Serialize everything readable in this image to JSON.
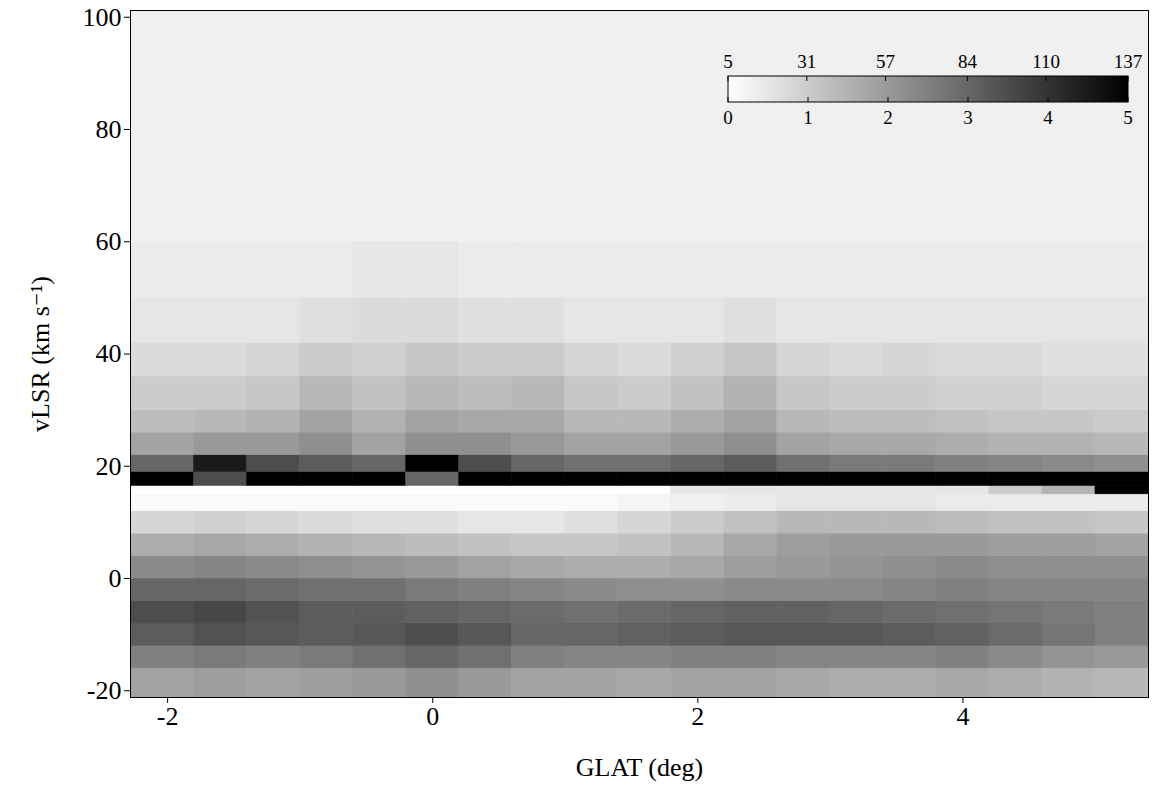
{
  "chart_data": {
    "type": "heatmap",
    "x_label": "GLAT (deg)",
    "y_label": "vLSR (km s⁻¹)",
    "xlim": [
      -2.28,
      5.4
    ],
    "ylim": [
      -21.2,
      101.2
    ],
    "xticks": [
      -2,
      0,
      2,
      4
    ],
    "yticks": [
      -20,
      0,
      20,
      40,
      60,
      80,
      100
    ],
    "x_edges": [
      -2.28,
      -1.8,
      -1.4,
      -1.0,
      -0.6,
      -0.2,
      0.2,
      0.6,
      1.0,
      1.4,
      1.8,
      2.2,
      2.6,
      3.0,
      3.4,
      3.8,
      4.2,
      4.6,
      5.0,
      5.4
    ],
    "y_edges": [
      -21.2,
      -16,
      -12,
      -8,
      -4,
      0,
      4,
      8,
      12,
      15,
      16.5,
      19,
      22,
      26,
      30,
      36,
      42,
      50,
      60,
      80,
      101.2
    ],
    "values": [
      [
        1.8,
        1.9,
        1.8,
        1.9,
        2.0,
        2.2,
        2.0,
        1.8,
        1.8,
        1.7,
        1.8,
        1.8,
        1.7,
        1.6,
        1.6,
        1.7,
        1.6,
        1.5,
        1.4
      ],
      [
        2.5,
        2.6,
        2.5,
        2.6,
        2.8,
        3.0,
        2.8,
        2.5,
        2.4,
        2.4,
        2.5,
        2.5,
        2.4,
        2.4,
        2.4,
        2.5,
        2.3,
        2.1,
        2.0
      ],
      [
        3.2,
        3.4,
        3.3,
        3.2,
        3.3,
        3.5,
        3.3,
        3.0,
        3.0,
        3.1,
        3.2,
        3.3,
        3.3,
        3.3,
        3.2,
        3.1,
        2.9,
        2.7,
        2.5
      ],
      [
        3.5,
        3.6,
        3.4,
        3.2,
        3.2,
        3.1,
        3.0,
        2.9,
        2.8,
        2.9,
        3.0,
        3.1,
        3.1,
        3.0,
        2.9,
        2.8,
        2.7,
        2.6,
        2.5
      ],
      [
        3.0,
        3.0,
        2.9,
        2.8,
        2.8,
        2.6,
        2.5,
        2.4,
        2.3,
        2.2,
        2.2,
        2.3,
        2.3,
        2.3,
        2.4,
        2.5,
        2.4,
        2.4,
        2.4
      ],
      [
        2.3,
        2.4,
        2.3,
        2.2,
        2.1,
        2.0,
        1.8,
        1.7,
        1.6,
        1.6,
        1.7,
        1.9,
        2.0,
        2.1,
        2.2,
        2.3,
        2.2,
        2.2,
        2.2
      ],
      [
        1.6,
        1.7,
        1.6,
        1.5,
        1.4,
        1.3,
        1.2,
        1.1,
        1.1,
        1.2,
        1.4,
        1.7,
        1.9,
        2.0,
        2.0,
        2.0,
        1.9,
        1.9,
        1.8
      ],
      [
        0.8,
        0.9,
        0.8,
        0.7,
        0.6,
        0.6,
        0.5,
        0.5,
        0.6,
        0.8,
        1.0,
        1.2,
        1.4,
        1.4,
        1.4,
        1.3,
        1.2,
        1.2,
        1.1
      ],
      [
        0.1,
        0.1,
        0.1,
        0.1,
        0.1,
        0.1,
        0.1,
        0.1,
        0.1,
        0.2,
        0.3,
        0.4,
        0.5,
        0.5,
        0.5,
        0.4,
        0.4,
        0.4,
        0.4
      ],
      [
        0,
        0,
        0,
        0,
        0,
        0,
        0,
        0,
        0,
        0,
        0.5,
        0.5,
        0.5,
        0.5,
        0.5,
        0.5,
        1.0,
        1.5,
        5.5
      ],
      [
        6,
        3.5,
        6,
        6,
        6,
        3,
        6,
        6,
        6,
        6,
        6,
        6,
        6,
        6,
        6,
        6,
        6,
        6,
        6
      ],
      [
        3.0,
        4.5,
        3.5,
        3.2,
        3.0,
        5.5,
        3.5,
        3.0,
        2.8,
        2.8,
        3.0,
        3.2,
        2.8,
        2.6,
        2.6,
        2.5,
        2.4,
        2.3,
        2.2
      ],
      [
        1.8,
        2.0,
        2.0,
        2.2,
        1.8,
        2.2,
        2.2,
        2.0,
        1.8,
        1.8,
        2.0,
        2.2,
        1.8,
        1.7,
        1.7,
        1.6,
        1.5,
        1.5,
        1.4
      ],
      [
        1.3,
        1.4,
        1.5,
        1.8,
        1.5,
        1.8,
        1.7,
        1.7,
        1.4,
        1.4,
        1.6,
        1.8,
        1.4,
        1.3,
        1.3,
        1.2,
        1.1,
        1.1,
        1.0
      ],
      [
        1.0,
        1.0,
        1.1,
        1.4,
        1.2,
        1.4,
        1.3,
        1.4,
        1.1,
        1.0,
        1.2,
        1.5,
        1.1,
        1.0,
        1.0,
        0.9,
        0.9,
        0.8,
        0.8
      ],
      [
        0.7,
        0.7,
        0.8,
        1.0,
        0.9,
        1.1,
        1.0,
        1.0,
        0.8,
        0.7,
        0.9,
        1.1,
        0.8,
        0.7,
        0.8,
        0.7,
        0.7,
        0.6,
        0.6
      ],
      [
        0.5,
        0.5,
        0.5,
        0.6,
        0.7,
        0.7,
        0.6,
        0.6,
        0.5,
        0.5,
        0.5,
        0.6,
        0.5,
        0.5,
        0.5,
        0.5,
        0.5,
        0.5,
        0.5
      ],
      [
        0.4,
        0.4,
        0.4,
        0.4,
        0.5,
        0.5,
        0.4,
        0.4,
        0.4,
        0.4,
        0.4,
        0.4,
        0.4,
        0.4,
        0.4,
        0.4,
        0.4,
        0.4,
        0.4
      ],
      [
        0.3,
        0.3,
        0.3,
        0.3,
        0.3,
        0.3,
        0.3,
        0.3,
        0.3,
        0.3,
        0.3,
        0.3,
        0.3,
        0.3,
        0.3,
        0.3,
        0.3,
        0.3,
        0.3
      ],
      [
        0.3,
        0.3,
        0.3,
        0.3,
        0.3,
        0.3,
        0.3,
        0.3,
        0.3,
        0.3,
        0.3,
        0.3,
        0.3,
        0.3,
        0.3,
        0.3,
        0.3,
        0.3,
        0.3
      ]
    ],
    "colorbar_range": [
      0,
      5
    ],
    "colorbar_ticks": [
      0,
      1,
      2,
      3,
      4,
      5
    ],
    "colorbar_top_range": [
      5,
      137
    ],
    "colorbar_top_ticks": [
      5,
      31,
      57,
      84,
      110,
      137
    ]
  }
}
